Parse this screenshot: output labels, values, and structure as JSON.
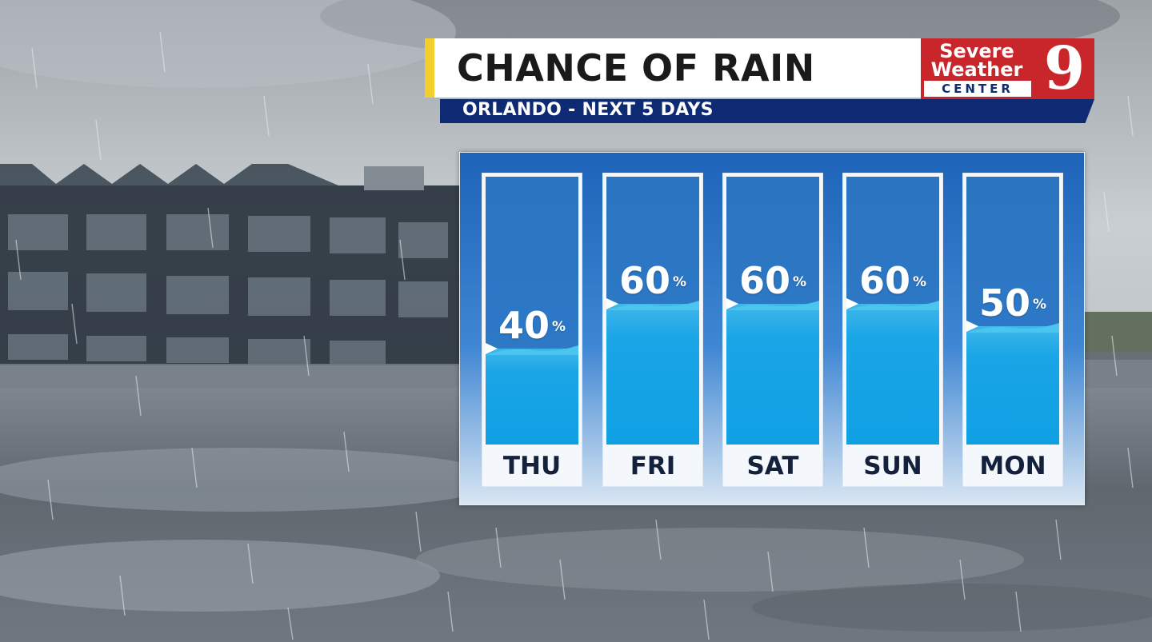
{
  "header": {
    "title": "CHANCE OF RAIN",
    "subtitle": "ORLANDO - NEXT 5 DAYS"
  },
  "logo": {
    "line1": "Severe",
    "line2": "Weather",
    "line3": "CENTER",
    "number": "9"
  },
  "colors": {
    "accent_yellow": "#f2cf2a",
    "subtitle_navy": "#0d2a73",
    "logo_red": "#c8262a",
    "panel_blue": "#1d63b8",
    "water_cyan": "#1aa5e6"
  },
  "chart_data": {
    "type": "bar",
    "categories": [
      "THU",
      "FRI",
      "SAT",
      "SUN",
      "MON"
    ],
    "values": [
      40,
      60,
      60,
      60,
      50
    ],
    "unit": "%",
    "ylim": [
      0,
      100
    ]
  }
}
